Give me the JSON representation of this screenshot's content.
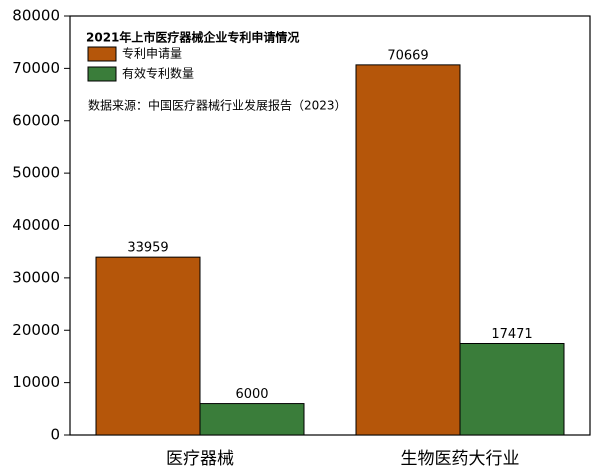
{
  "chart_data": {
    "type": "bar",
    "title": "2021年上市医疗器械企业专利申请情况",
    "annotation": "数据来源：中国医疗器械行业发展报告（2023）",
    "categories": [
      "医疗器械",
      "生物医药大行业"
    ],
    "series": [
      {
        "name": "专利申请量",
        "color": "#b5560a",
        "values": [
          33959,
          70669
        ]
      },
      {
        "name": "有效专利数量",
        "color": "#3a7d3a",
        "values": [
          6000,
          17471
        ]
      }
    ],
    "ylim": [
      0,
      80000
    ],
    "yticks": [
      0,
      10000,
      20000,
      30000,
      40000,
      50000,
      60000,
      70000,
      80000
    ]
  }
}
